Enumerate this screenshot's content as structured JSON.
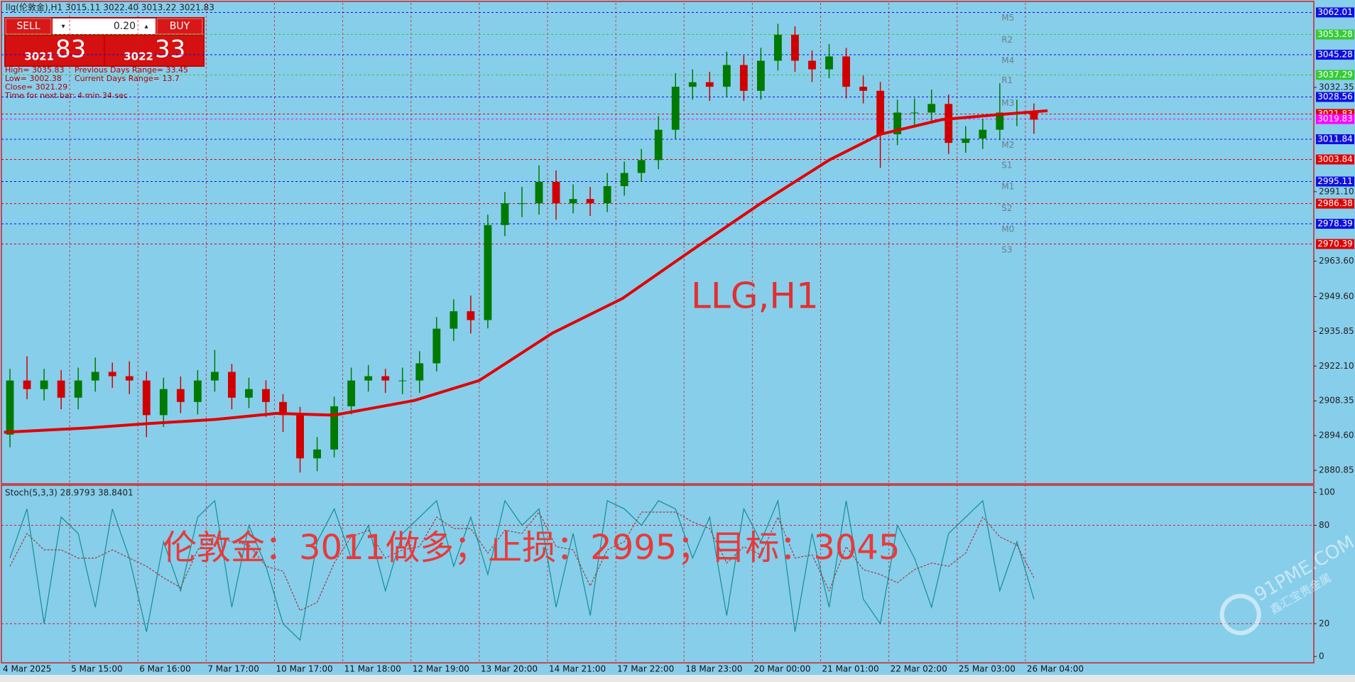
{
  "header": {
    "symbol_line": "llg(伦敦金),H1  3015.11 3022.40 3013.22 3021.83"
  },
  "trade_panel": {
    "sell": "SELL",
    "buy": "BUY",
    "lot": "0.20",
    "sell_main": "3021",
    "sell_big": "83",
    "buy_main": "3022",
    "buy_big": "33"
  },
  "info": {
    "high": "High= 3035.83",
    "prev_range": "Previous Days Range= 33.45",
    "low": "Low= 3002.38",
    "cur_range": "Current Days Range= 13.7",
    "close": "Close= 3021.29",
    "timer": "Time for next bar: 4 min 34 sec"
  },
  "annotations": {
    "chart_label": "LLG,H1",
    "signal": "伦敦金：3011做多；止损：2995；目标：3045",
    "watermark": "91PME.COM",
    "watermark_sub": "鑫汇宝贵金属"
  },
  "chart_data": [
    {
      "type": "candlestick",
      "up_color": "#007a00",
      "down_color": "#d00000",
      "xlim": [
        0,
        76.9
      ],
      "xticks": [
        {
          "value": 0,
          "label": "4 Mar 2025"
        },
        {
          "value": 4,
          "label": "5 Mar 15:00"
        },
        {
          "value": 8,
          "label": "6 Mar 16:00"
        },
        {
          "value": 12,
          "label": "7 Mar 17:00"
        },
        {
          "value": 16,
          "label": "10 Mar 17:00"
        },
        {
          "value": 20,
          "label": "11 Mar 18:00"
        },
        {
          "value": 24,
          "label": "12 Mar 19:00"
        },
        {
          "value": 28,
          "label": "13 Mar 20:00"
        },
        {
          "value": 32,
          "label": "14 Mar 21:00"
        },
        {
          "value": 36,
          "label": "17 Mar 22:00"
        },
        {
          "value": 40,
          "label": "18 Mar 23:00"
        },
        {
          "value": 44,
          "label": "20 Mar 00:00"
        },
        {
          "value": 48,
          "label": "21 Mar 01:00"
        },
        {
          "value": 52,
          "label": "22 Mar 02:00"
        },
        {
          "value": 56,
          "label": "25 Mar 03:00"
        },
        {
          "value": 60,
          "label": "26 Mar 04:00"
        }
      ],
      "ylim": [
        2876.1,
        3065.8
      ],
      "yticks": [
        2880.85,
        {
          "value": 2894.6,
          "label": "2894.60"
        },
        2908.35,
        {
          "value": 2922.1,
          "label": "2922.10"
        },
        2935.85,
        {
          "value": 2949.6,
          "label": "2949.60"
        },
        {
          "value": 2963.6,
          "label": "2963.60"
        },
        {
          "value": 2991.1,
          "label": "2991.10"
        },
        3032.35
      ],
      "open": [
        2895.0,
        2916.4,
        2913.0,
        2916.4,
        2909.6,
        2916.4,
        2919.8,
        2918.1,
        2916.4,
        2902.7,
        2913.0,
        2907.9,
        2916.4,
        2919.8,
        2909.6,
        2913.0,
        2907.9,
        2902.7,
        2885.6,
        2889.1,
        2906.2,
        2916.4,
        2918.1,
        2916.4,
        2916.4,
        2923.2,
        2936.9,
        2943.8,
        2940.3,
        2977.9,
        2986.5,
        2986.5,
        2995.0,
        2986.5,
        2988.2,
        2986.5,
        2993.3,
        2998.5,
        3003.6,
        3015.6,
        3032.6,
        3034.4,
        3032.6,
        3041.2,
        3031.0,
        3042.9,
        3053.2,
        3042.9,
        3039.5,
        3044.6,
        3032.6,
        3031.0,
        3013.8,
        3022.4,
        3022.4,
        3025.8,
        3010.4,
        3012.1,
        3015.6,
        3022.4,
        3022.4
      ],
      "high": [
        2921.0,
        2926.0,
        2921.0,
        2920.5,
        2921.5,
        2925.5,
        2923.5,
        2924.0,
        2920.0,
        2917.5,
        2918.0,
        2920.5,
        2928.5,
        2923.0,
        2917.5,
        2916.5,
        2911.0,
        2906.0,
        2894.0,
        2910.0,
        2921.5,
        2922.5,
        2921.0,
        2921.5,
        2928.0,
        2941.5,
        2948.5,
        2950.0,
        2982.0,
        2991.0,
        2993.0,
        3001.5,
        2999.5,
        2994.0,
        2993.0,
        2998.5,
        3003.0,
        3008.0,
        3021.0,
        3038.0,
        3039.5,
        3038.5,
        3046.5,
        3045.0,
        3048.0,
        3057.5,
        3056.5,
        3047.0,
        3049.5,
        3048.0,
        3037.0,
        3034.5,
        3027.5,
        3028.0,
        3031.5,
        3029.5,
        3017.0,
        3020.0,
        3034.0,
        3027.5,
        3026.0
      ],
      "low": [
        2890.0,
        2909.0,
        2908.5,
        2905.0,
        2905.0,
        2912.0,
        2913.5,
        2911.0,
        2894.0,
        2898.0,
        2903.5,
        2903.0,
        2912.0,
        2905.0,
        2905.5,
        2902.0,
        2896.0,
        2880.0,
        2880.5,
        2886.0,
        2903.0,
        2912.0,
        2911.5,
        2911.0,
        2911.5,
        2920.0,
        2932.0,
        2935.0,
        2937.0,
        2973.5,
        2981.0,
        2982.0,
        2980.0,
        2982.5,
        2981.5,
        2983.0,
        2989.5,
        2995.0,
        3000.0,
        3012.0,
        3027.5,
        3027.0,
        3028.5,
        3027.0,
        3027.5,
        3039.0,
        3038.5,
        3034.5,
        3036.0,
        3028.0,
        3026.0,
        3000.5,
        3009.5,
        3017.5,
        3018.0,
        3006.0,
        3006.5,
        3008.0,
        3011.5,
        3017.0,
        3014.0
      ],
      "close": [
        2916.4,
        2913.0,
        2916.4,
        2909.6,
        2916.4,
        2919.8,
        2918.1,
        2916.4,
        2902.7,
        2913.0,
        2907.9,
        2916.4,
        2919.8,
        2909.6,
        2913.0,
        2907.9,
        2902.7,
        2885.6,
        2889.1,
        2906.2,
        2916.4,
        2918.1,
        2916.4,
        2916.4,
        2923.2,
        2936.9,
        2943.8,
        2940.3,
        2977.9,
        2986.5,
        2986.5,
        2995.0,
        2986.5,
        2988.2,
        2986.5,
        2993.3,
        2998.5,
        3003.6,
        3015.6,
        3032.6,
        3034.4,
        3032.6,
        3041.2,
        3031.0,
        3042.9,
        3053.2,
        3042.9,
        3039.5,
        3044.6,
        3032.6,
        3031.0,
        3013.8,
        3022.4,
        3022.4,
        3025.8,
        3010.4,
        3012.1,
        3015.6,
        3022.4,
        3022.4,
        3019.6
      ],
      "ma": {
        "color": "#e00000",
        "x": [
          0.15,
          4.96,
          8.51,
          12.56,
          16.1,
          19.49,
          24.2,
          28,
          32.3,
          36.4,
          40.4,
          44.5,
          48.5,
          51.5,
          55.1,
          58.1,
          61.3
        ],
        "values": [
          2895.9,
          2897.6,
          2899.3,
          2901.0,
          2903.4,
          2902.7,
          2908.5,
          2916.4,
          2935.2,
          2948.9,
          2967.7,
          2986.5,
          3003.6,
          3013.8,
          3019.6,
          3021.4,
          3023.1
        ]
      },
      "levels": [
        {
          "value": 3062.01,
          "color": "#1010e0"
        },
        {
          "value": 3053.28,
          "color": "#33cc33"
        },
        {
          "value": 3045.28,
          "color": "#1010e0"
        },
        {
          "value": 3037.29,
          "color": "#33cc33"
        },
        {
          "value": 3028.56,
          "color": "#1010e0"
        },
        {
          "value": 3021.83,
          "color": "#e00000"
        },
        {
          "value": 3019.83,
          "color": "#ff00ff"
        },
        {
          "value": 3011.84,
          "color": "#1010e0"
        },
        {
          "value": 3003.84,
          "color": "#e00000"
        },
        {
          "value": 2995.11,
          "color": "#1010e0"
        },
        {
          "value": 2986.38,
          "color": "#e00000"
        },
        {
          "value": 2978.39,
          "color": "#1010e0"
        },
        {
          "value": 2970.39,
          "color": "#e00000"
        }
      ],
      "pivots": [
        {
          "label": "M5",
          "value": 3059.7
        },
        {
          "label": "R2",
          "value": 3051.1
        },
        {
          "label": "M4",
          "value": 3042.9
        },
        {
          "label": "R1",
          "value": 3035.0
        },
        {
          "label": "M3",
          "value": 3026.1
        },
        {
          "label": "M2",
          "value": 3009.4
        },
        {
          "label": "S1",
          "value": 3001.5
        },
        {
          "label": "M1",
          "value": 2993.0
        },
        {
          "label": "S2",
          "value": 2984.4
        },
        {
          "label": "M0",
          "value": 2976.2
        },
        {
          "label": "S3",
          "value": 2968.0
        }
      ]
    },
    {
      "type": "line",
      "title": "Stoch(5,3,3) 28.9793 38.8401",
      "ylim": [
        -3,
        104
      ],
      "yticks": [
        0,
        20,
        80,
        100
      ],
      "levels": [
        20,
        80
      ],
      "series": [
        {
          "color": "#138f8f",
          "values": [
            60,
            90,
            20,
            85,
            75,
            30,
            90,
            60,
            15,
            70,
            40,
            85,
            95,
            30,
            80,
            55,
            20,
            10,
            70,
            90,
            60,
            80,
            40,
            75,
            85,
            95,
            55,
            85,
            50,
            95,
            80,
            90,
            30,
            75,
            25,
            95,
            90,
            80,
            95,
            90,
            60,
            85,
            25,
            90,
            70,
            95,
            15,
            75,
            30,
            95,
            35,
            20,
            80,
            60,
            30,
            75,
            85,
            95,
            40,
            70,
            35
          ]
        },
        {
          "color": "#a03c3c",
          "dashed": true,
          "values": [
            55,
            75,
            65,
            65,
            60,
            60,
            65,
            60,
            55,
            48,
            42,
            65,
            73,
            70,
            68,
            55,
            52,
            28,
            33,
            57,
            73,
            77,
            60,
            65,
            67,
            85,
            78,
            78,
            63,
            77,
            75,
            88,
            67,
            65,
            43,
            65,
            70,
            88,
            88,
            88,
            82,
            78,
            57,
            67,
            62,
            85,
            60,
            62,
            40,
            67,
            53,
            50,
            45,
            53,
            57,
            55,
            63,
            85,
            73,
            68,
            48
          ]
        }
      ]
    }
  ]
}
